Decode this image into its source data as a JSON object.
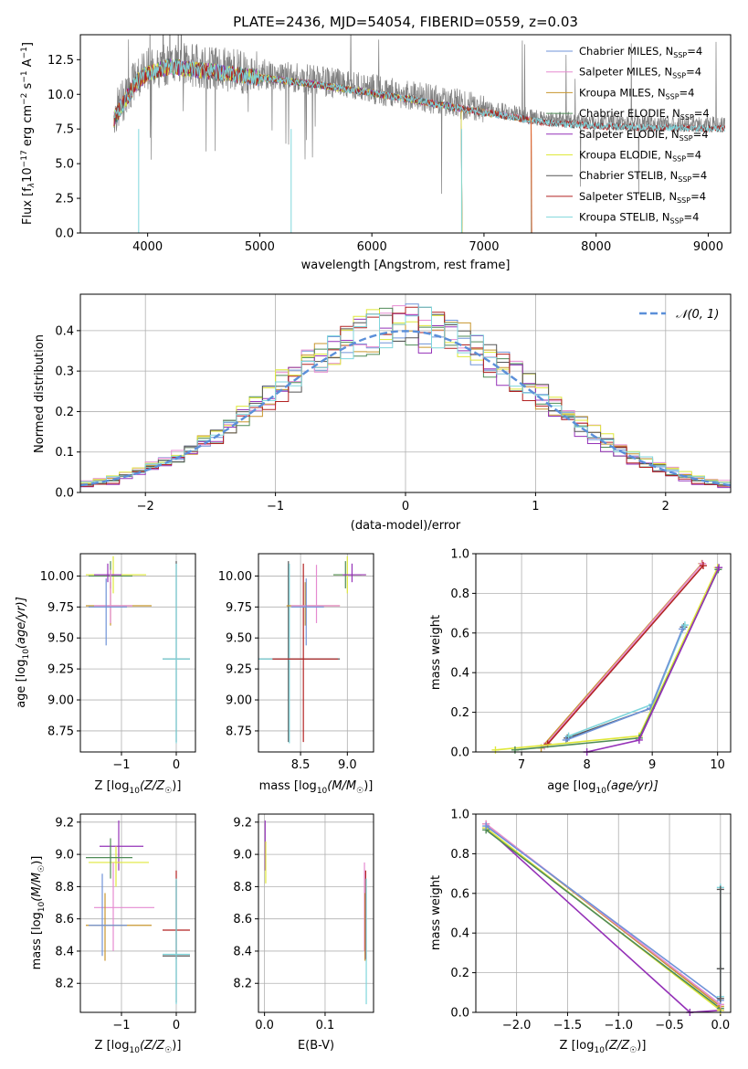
{
  "title": "PLATE=2436, MJD=54054, FIBERID=0559, z=0.03",
  "colors": {
    "Chabrier MILES": "#6f93d8",
    "Salpeter MILES": "#e58ad0",
    "Kroupa MILES": "#c8962e",
    "Chabrier ELODIE": "#4f8b57",
    "Salpeter ELODIE": "#9532b8",
    "Kroupa ELODIE": "#dfe83a",
    "Chabrier STELIB": "#555555",
    "Salpeter STELIB": "#b22222",
    "Kroupa STELIB": "#7fd6dc",
    "data": "#808080",
    "model": "#e06a35",
    "normal": "#5b8fd9",
    "grid": "#b0b0b0"
  },
  "chart_data": [
    {
      "id": "spectrum",
      "type": "line",
      "xlabel": "wavelength [Angstrom, rest frame]",
      "ylabel_main": "Flux [f",
      "ylabel_sub": "λ",
      "ylabel_rest": "10",
      "ylabel_exp": "−17",
      "ylabel_units": " erg cm",
      "ylabel_e2": "−2",
      "ylabel_s": " s",
      "ylabel_e3": "−1",
      "ylabel_a": " A",
      "ylabel_e4": "−1",
      "ylabel_end": "]",
      "xlim": [
        3400,
        9200
      ],
      "ylim": [
        0,
        14.3
      ],
      "xticks": [
        "4000",
        "5000",
        "6000",
        "7000",
        "8000",
        "9000"
      ],
      "yticks": [
        "0.0",
        "2.5",
        "5.0",
        "7.5",
        "10.0",
        "12.5"
      ],
      "legend": [
        {
          "name": "Chabrier MILES, N",
          "sub": "SSP",
          "suffix": "=4"
        },
        {
          "name": "Salpeter MILES, N",
          "sub": "SSP",
          "suffix": "=4"
        },
        {
          "name": "Kroupa MILES, N",
          "sub": "SSP",
          "suffix": "=4"
        },
        {
          "name": "Chabrier ELODIE, N",
          "sub": "SSP",
          "suffix": "=4"
        },
        {
          "name": "Salpeter ELODIE, N",
          "sub": "SSP",
          "suffix": "=4"
        },
        {
          "name": "Kroupa ELODIE, N",
          "sub": "SSP",
          "suffix": "=4"
        },
        {
          "name": "Chabrier STELIB, N",
          "sub": "SSP",
          "suffix": "=4"
        },
        {
          "name": "Salpeter STELIB, N",
          "sub": "SSP",
          "suffix": "=4"
        },
        {
          "name": "Kroupa STELIB, N",
          "sub": "SSP",
          "suffix": "=4"
        }
      ],
      "model_trend": {
        "x": [
          3700,
          3900,
          4000,
          4200,
          4500,
          5000,
          5500,
          6000,
          6500,
          7000,
          7300,
          7500,
          8000,
          8500,
          9200
        ],
        "y": [
          8.5,
          11.2,
          11.8,
          12.3,
          12.0,
          11.5,
          11.0,
          10.4,
          9.7,
          9.0,
          8.6,
          8.3,
          8.0,
          7.9,
          7.8
        ]
      },
      "model_cutoffs": [
        {
          "x": 3920,
          "to": 0
        },
        {
          "x": 5280,
          "to": 0
        },
        {
          "x": 6800,
          "to": 0
        },
        {
          "x": 7420,
          "to": 0
        }
      ]
    },
    {
      "id": "residuals",
      "type": "histogram",
      "xlabel": "(data-model)/error",
      "ylabel": "Normed distribution",
      "xlim": [
        -2.5,
        2.5
      ],
      "ylim": [
        0,
        0.49
      ],
      "xticks": [
        "−2",
        "−1",
        "0",
        "1",
        "2"
      ],
      "yticks": [
        "0.0",
        "0.1",
        "0.2",
        "0.3",
        "0.4"
      ],
      "legend": "𝒩(0, 1)",
      "bin_width": 0.1,
      "series": [
        {
          "name": "Chabrier MILES",
          "offset": 0.01
        },
        {
          "name": "Salpeter MILES",
          "offset": 0.03
        },
        {
          "name": "Kroupa MILES",
          "offset": 0.0
        },
        {
          "name": "Chabrier ELODIE",
          "offset": -0.01
        },
        {
          "name": "Salpeter ELODIE",
          "offset": -0.03
        },
        {
          "name": "Kroupa ELODIE",
          "offset": 0.02
        },
        {
          "name": "Chabrier STELIB",
          "offset": -0.005
        },
        {
          "name": "Salpeter STELIB",
          "offset": -0.02
        },
        {
          "name": "Kroupa STELIB",
          "offset": 0.015
        }
      ]
    },
    {
      "id": "age_vs_Z",
      "type": "errorbar",
      "xlabel": "Z [log",
      "xlabel_sub": "10",
      "xlabel_rest": "(Z/Z",
      "xlabel_sun": "☉",
      "xlabel_end": ")]",
      "ylabel": "age  [log",
      "ylabel_sub": "10",
      "ylabel_rest": "(age/yr)]",
      "xlim": [
        -1.75,
        0.35
      ],
      "ylim": [
        8.58,
        10.18
      ],
      "xticks": [
        {
          "v": -1,
          "t": "−1"
        },
        {
          "v": 0,
          "t": "0"
        }
      ],
      "yticks": [
        {
          "v": 8.75,
          "t": "8.75"
        },
        {
          "v": 9.0,
          "t": "9.00"
        },
        {
          "v": 9.25,
          "t": "9.25"
        },
        {
          "v": 9.5,
          "t": "9.50"
        },
        {
          "v": 9.75,
          "t": "9.75"
        },
        {
          "v": 10.0,
          "t": "10.00"
        }
      ],
      "points": [
        {
          "s": "Kroupa ELODIE",
          "x": -1.15,
          "y": 10.01,
          "x0": -1.65,
          "x1": -0.55,
          "y0": 9.86,
          "y1": 10.16
        },
        {
          "s": "Chabrier ELODIE",
          "x": -1.2,
          "y": 10.0,
          "x0": -1.6,
          "x1": -0.8,
          "y0": 9.9,
          "y1": 10.12
        },
        {
          "s": "Salpeter ELODIE",
          "x": -1.25,
          "y": 10.01,
          "x0": -1.5,
          "x1": -1.0,
          "y0": 9.95,
          "y1": 10.1
        },
        {
          "s": "Kroupa MILES",
          "x": -1.2,
          "y": 9.76,
          "x0": -1.65,
          "x1": -0.45,
          "y0": 9.6,
          "y1": 9.95
        },
        {
          "s": "Salpeter MILES",
          "x": -1.2,
          "y": 9.76,
          "x0": -1.5,
          "x1": -0.8,
          "y0": 9.62,
          "y1": 10.05
        },
        {
          "s": "Chabrier MILES",
          "x": -1.28,
          "y": 9.75,
          "x0": -1.6,
          "x1": -0.9,
          "y0": 9.44,
          "y1": 9.98
        },
        {
          "s": "Chabrier STELIB",
          "x": 0.0,
          "y": 9.33,
          "x0": -0.25,
          "x1": 0.25,
          "y0": 8.66,
          "y1": 10.12
        },
        {
          "s": "Kroupa STELIB",
          "x": 0.0,
          "y": 9.33,
          "x0": -0.25,
          "x1": 0.25,
          "y0": 8.65,
          "y1": 10.1
        }
      ]
    },
    {
      "id": "age_vs_mass",
      "type": "errorbar",
      "xlabel": "mass [log",
      "xlabel_sub": "10",
      "xlabel_rest": "(M/M",
      "xlabel_sun": "☉",
      "xlabel_end": ")]",
      "xlim": [
        8.05,
        9.28
      ],
      "ylim": [
        8.58,
        10.18
      ],
      "xticks": [
        {
          "v": 8.5,
          "t": "8.5"
        },
        {
          "v": 9.0,
          "t": "9.0"
        }
      ],
      "yticks": [
        {
          "v": 8.75,
          "t": "8.75"
        },
        {
          "v": 9.0,
          "t": "9.00"
        },
        {
          "v": 9.25,
          "t": "9.25"
        },
        {
          "v": 9.5,
          "t": "9.50"
        },
        {
          "v": 9.75,
          "t": "9.75"
        },
        {
          "v": 10.0,
          "t": "10.00"
        }
      ],
      "points": [
        {
          "s": "Chabrier STELIB",
          "x": 8.37,
          "y": 9.33,
          "x0": 8.05,
          "x1": 8.92,
          "y0": 8.66,
          "y1": 10.12
        },
        {
          "s": "Kroupa STELIB",
          "x": 8.38,
          "y": 9.33,
          "x0": 8.05,
          "x1": 8.9,
          "y0": 8.65,
          "y1": 10.1
        },
        {
          "s": "Salpeter STELIB",
          "x": 8.53,
          "y": 9.33,
          "x0": 8.2,
          "x1": 8.9,
          "y0": 8.66,
          "y1": 10.1
        },
        {
          "s": "Kroupa MILES",
          "x": 8.55,
          "y": 9.76,
          "x0": 8.35,
          "x1": 8.92,
          "y0": 9.6,
          "y1": 9.95
        },
        {
          "s": "Salpeter MILES",
          "x": 8.67,
          "y": 9.76,
          "x0": 8.4,
          "x1": 8.92,
          "y0": 9.62,
          "y1": 10.09
        },
        {
          "s": "Chabrier MILES",
          "x": 8.56,
          "y": 9.75,
          "x0": 8.4,
          "x1": 8.75,
          "y0": 9.44,
          "y1": 9.98
        },
        {
          "s": "Kroupa ELODIE",
          "x": 9.0,
          "y": 10.01,
          "x0": 8.85,
          "x1": 9.2,
          "y0": 9.86,
          "y1": 10.16
        },
        {
          "s": "Chabrier ELODIE",
          "x": 8.98,
          "y": 10.01,
          "x0": 8.85,
          "x1": 9.15,
          "y0": 9.9,
          "y1": 10.12
        },
        {
          "s": "Salpeter ELODIE",
          "x": 9.05,
          "y": 10.01,
          "x0": 8.95,
          "x1": 9.2,
          "y0": 9.95,
          "y1": 10.1
        }
      ]
    },
    {
      "id": "weight_vs_age",
      "type": "line",
      "xlabel": "age  [log",
      "xlabel_sub": "10",
      "xlabel_rest": "(age/yr)]",
      "ylabel": "mass weight",
      "xlim": [
        6.3,
        10.2
      ],
      "ylim": [
        0,
        1.0
      ],
      "xticks": [
        {
          "v": 7,
          "t": "7"
        },
        {
          "v": 8,
          "t": "8"
        },
        {
          "v": 9,
          "t": "9"
        },
        {
          "v": 10,
          "t": "10"
        }
      ],
      "yticks": [
        {
          "v": 0,
          "t": "0.0"
        },
        {
          "v": 0.2,
          "t": "0.2"
        },
        {
          "v": 0.4,
          "t": "0.4"
        },
        {
          "v": 0.6,
          "t": "0.6"
        },
        {
          "v": 0.8,
          "t": "0.8"
        },
        {
          "v": 1.0,
          "t": "1.0"
        }
      ],
      "series": [
        {
          "s": "Chabrier STELIB",
          "x": [
            7.7,
            8.98,
            9.48
          ],
          "y": [
            0.07,
            0.22,
            0.63
          ]
        },
        {
          "s": "Kroupa STELIB",
          "x": [
            7.72,
            9.0,
            9.5
          ],
          "y": [
            0.08,
            0.24,
            0.64
          ]
        },
        {
          "s": "Chabrier MILES",
          "x": [
            7.68,
            8.97,
            9.46
          ],
          "y": [
            0.06,
            0.22,
            0.62
          ]
        },
        {
          "s": "Kroupa MILES",
          "x": [
            7.3,
            9.76
          ],
          "y": [
            0.02,
            0.95
          ]
        },
        {
          "s": "Salpeter MILES",
          "x": [
            7.35,
            9.77
          ],
          "y": [
            0.03,
            0.95
          ]
        },
        {
          "s": "Salpeter STELIB",
          "x": [
            7.4,
            9.78
          ],
          "y": [
            0.04,
            0.94
          ]
        },
        {
          "s": "Kroupa ELODIE",
          "x": [
            6.6,
            8.8,
            10.0
          ],
          "y": [
            0.01,
            0.08,
            0.93
          ]
        },
        {
          "s": "Chabrier ELODIE",
          "x": [
            6.9,
            8.8,
            10.01
          ],
          "y": [
            0.01,
            0.07,
            0.92
          ]
        },
        {
          "s": "Salpeter ELODIE",
          "x": [
            8.0,
            8.8,
            10.02
          ],
          "y": [
            0.0,
            0.06,
            0.93
          ]
        }
      ]
    },
    {
      "id": "mass_vs_Z",
      "type": "errorbar",
      "xlabel": "Z [log",
      "xlabel_sub": "10",
      "xlabel_rest": "(Z/Z",
      "xlabel_sun": "☉",
      "xlabel_end": ")]",
      "ylabel": "mass [log",
      "ylabel_sub": "10",
      "ylabel_rest": "(M/M",
      "ylabel_sun": "☉",
      "ylabel_end": ")]",
      "xlim": [
        -1.75,
        0.35
      ],
      "ylim": [
        8.02,
        9.25
      ],
      "xticks": [
        {
          "v": -1,
          "t": "−1"
        },
        {
          "v": 0,
          "t": "0"
        }
      ],
      "yticks": [
        {
          "v": 8.2,
          "t": "8.2"
        },
        {
          "v": 8.4,
          "t": "8.4"
        },
        {
          "v": 8.6,
          "t": "8.6"
        },
        {
          "v": 8.8,
          "t": "8.8"
        },
        {
          "v": 9.0,
          "t": "9.0"
        },
        {
          "v": 9.2,
          "t": "9.2"
        }
      ],
      "points": [
        {
          "s": "Salpeter ELODIE",
          "x": -1.05,
          "y": 9.05,
          "x0": -1.4,
          "x1": -0.6,
          "y0": 8.9,
          "y1": 9.21
        },
        {
          "s": "Kroupa ELODIE",
          "x": -1.1,
          "y": 8.95,
          "x0": -1.6,
          "x1": -0.5,
          "y0": 8.8,
          "y1": 9.05
        },
        {
          "s": "Chabrier ELODIE",
          "x": -1.2,
          "y": 8.98,
          "x0": -1.65,
          "x1": -0.8,
          "y0": 8.85,
          "y1": 9.1
        },
        {
          "s": "Salpeter MILES",
          "x": -1.15,
          "y": 8.67,
          "x0": -1.5,
          "x1": -0.4,
          "y0": 8.4,
          "y1": 8.95
        },
        {
          "s": "Kroupa MILES",
          "x": -1.3,
          "y": 8.56,
          "x0": -1.65,
          "x1": -0.45,
          "y0": 8.34,
          "y1": 8.76
        },
        {
          "s": "Chabrier MILES",
          "x": -1.35,
          "y": 8.56,
          "x0": -1.6,
          "x1": -0.9,
          "y0": 8.37,
          "y1": 8.88
        },
        {
          "s": "Salpeter STELIB",
          "x": 0.0,
          "y": 8.53,
          "x0": -0.25,
          "x1": 0.25,
          "y0": 8.35,
          "y1": 8.9
        },
        {
          "s": "Chabrier STELIB",
          "x": 0.0,
          "y": 8.37,
          "x0": -0.25,
          "x1": 0.25,
          "y0": 8.08,
          "y1": 8.84
        },
        {
          "s": "Kroupa STELIB",
          "x": 0.0,
          "y": 8.38,
          "x0": -0.25,
          "x1": 0.25,
          "y0": 8.07,
          "y1": 8.85
        }
      ]
    },
    {
      "id": "mass_vs_ebv",
      "type": "errorbar",
      "xlabel": "E(B-V)",
      "xlim": [
        -0.01,
        0.18
      ],
      "ylim": [
        8.02,
        9.25
      ],
      "xticks": [
        {
          "v": 0.0,
          "t": "0.0"
        },
        {
          "v": 0.1,
          "t": "0.1"
        }
      ],
      "yticks": [
        {
          "v": 8.2,
          "t": "8.2"
        },
        {
          "v": 8.4,
          "t": "8.4"
        },
        {
          "v": 8.6,
          "t": "8.6"
        },
        {
          "v": 8.8,
          "t": "8.8"
        },
        {
          "v": 9.0,
          "t": "9.0"
        },
        {
          "v": 9.2,
          "t": "9.2"
        }
      ],
      "points": [
        {
          "s": "Salpeter ELODIE",
          "x": 0.001,
          "y": 9.05,
          "x0": 0.001,
          "x1": 0.001,
          "y0": 8.9,
          "y1": 9.21
        },
        {
          "s": "Kroupa ELODIE",
          "x": 0.002,
          "y": 8.95,
          "x0": 0.002,
          "x1": 0.002,
          "y0": 8.82,
          "y1": 9.08
        },
        {
          "s": "Salpeter MILES",
          "x": 0.165,
          "y": 8.67,
          "x0": 0.165,
          "x1": 0.165,
          "y0": 8.4,
          "y1": 8.95
        },
        {
          "s": "Kroupa MILES",
          "x": 0.166,
          "y": 8.56,
          "x0": 0.166,
          "x1": 0.166,
          "y0": 8.34,
          "y1": 8.76
        },
        {
          "s": "Salpeter STELIB",
          "x": 0.167,
          "y": 8.53,
          "x0": 0.167,
          "x1": 0.167,
          "y0": 8.35,
          "y1": 8.9
        },
        {
          "s": "Kroupa STELIB",
          "x": 0.168,
          "y": 8.38,
          "x0": 0.168,
          "x1": 0.168,
          "y0": 8.07,
          "y1": 8.85
        }
      ]
    },
    {
      "id": "weight_vs_Z",
      "type": "line",
      "xlabel": "Z [log",
      "xlabel_sub": "10",
      "xlabel_rest": "(Z/Z",
      "xlabel_sun": "☉",
      "xlabel_end": ")]",
      "ylabel": "mass weight",
      "xlim": [
        -2.4,
        0.1
      ],
      "ylim": [
        0,
        1.0
      ],
      "xticks": [
        {
          "v": -2.0,
          "t": "−2.0"
        },
        {
          "v": -1.5,
          "t": "−1.5"
        },
        {
          "v": -1.0,
          "t": "−1.0"
        },
        {
          "v": -0.5,
          "t": "−0.5"
        },
        {
          "v": 0.0,
          "t": "0.0"
        }
      ],
      "yticks": [
        {
          "v": 0,
          "t": "0.0"
        },
        {
          "v": 0.2,
          "t": "0.2"
        },
        {
          "v": 0.4,
          "t": "0.4"
        },
        {
          "v": 0.6,
          "t": "0.6"
        },
        {
          "v": 0.8,
          "t": "0.8"
        },
        {
          "v": 1.0,
          "t": "1.0"
        }
      ],
      "series": [
        {
          "s": "Salpeter ELODIE",
          "x": [
            -2.3,
            -0.3,
            0.0
          ],
          "y": [
            0.93,
            0.0,
            0.01
          ]
        },
        {
          "s": "Kroupa ELODIE",
          "x": [
            -2.3,
            0.0
          ],
          "y": [
            0.93,
            0.01
          ]
        },
        {
          "s": "Chabrier ELODIE",
          "x": [
            -2.3,
            0.0
          ],
          "y": [
            0.92,
            0.02
          ]
        },
        {
          "s": "Kroupa MILES",
          "x": [
            -2.3,
            0.0
          ],
          "y": [
            0.95,
            0.03
          ]
        },
        {
          "s": "Salpeter MILES",
          "x": [
            -2.3,
            0.0
          ],
          "y": [
            0.95,
            0.04
          ]
        },
        {
          "s": "Chabrier MILES",
          "x": [
            -2.3,
            0.0
          ],
          "y": [
            0.94,
            0.06
          ]
        },
        {
          "s": "Kroupa STELIB",
          "x": [
            0.0,
            0.0,
            0.0
          ],
          "y": [
            0.08,
            0.22,
            0.63
          ]
        },
        {
          "s": "Chabrier STELIB",
          "x": [
            0.0,
            0.0,
            0.0
          ],
          "y": [
            0.07,
            0.22,
            0.62
          ]
        }
      ]
    }
  ]
}
